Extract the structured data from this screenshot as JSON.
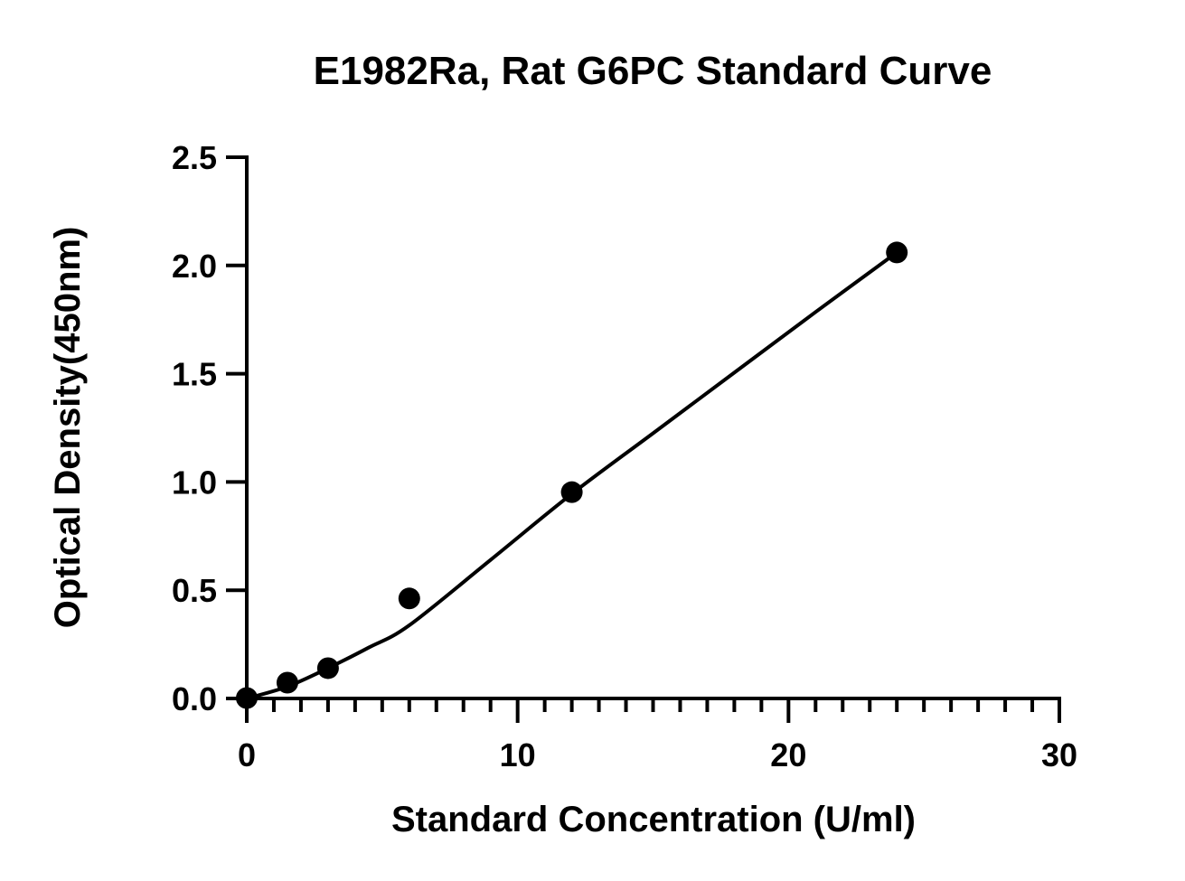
{
  "chart_data": {
    "type": "scatter",
    "title": "E1982Ra, Rat G6PC Standard Curve",
    "xlabel": "Standard Concentration (U/ml)",
    "ylabel": "Optical Density(450nm)",
    "xlim": [
      0,
      30
    ],
    "ylim": [
      0,
      2.5
    ],
    "x_major_ticks": [
      0,
      10,
      20,
      30
    ],
    "x_tick_labels": [
      "0",
      "10",
      "20",
      "30"
    ],
    "x_minor_step": 1,
    "y_major_ticks": [
      0,
      0.5,
      1.0,
      1.5,
      2.0,
      2.5
    ],
    "y_tick_labels": [
      "0.0",
      "0.5",
      "1.0",
      "1.5",
      "2.0",
      "2.5"
    ],
    "grid": false,
    "legend": "none",
    "series": [
      {
        "x": [
          0,
          1.5,
          3,
          6,
          12,
          24
        ],
        "y": [
          0.002,
          0.073,
          0.14,
          0.462,
          0.953,
          2.06
        ]
      }
    ],
    "fit_curve": {
      "x": [
        0,
        1.5,
        3,
        4.5,
        6,
        9,
        12,
        15,
        18,
        21,
        24
      ],
      "y": [
        0.0,
        0.055,
        0.14,
        0.235,
        0.338,
        0.64,
        0.945,
        1.225,
        1.505,
        1.785,
        2.06
      ]
    }
  }
}
